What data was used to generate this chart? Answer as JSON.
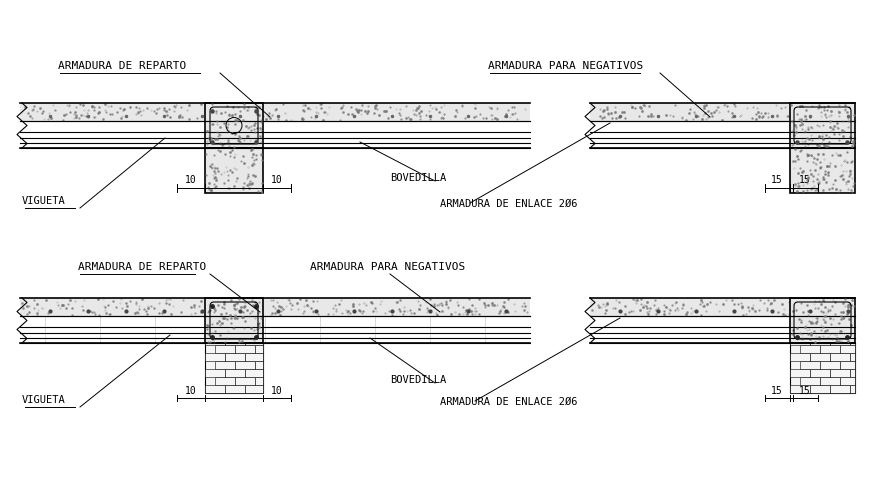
{
  "bg_color": "#ffffff",
  "line_color": "#000000",
  "concrete_color": "#e8e8e8",
  "labels": {
    "armadura_reparto": "ARMADURA DE REPARTO",
    "armadura_negativos": "ARMADURA PARA NEGATIVOS",
    "vigueta": "VIGUETA",
    "bovedilla": "BOVEDILLA",
    "enlace": "ARMADURA DE ENLACE 2Ø6"
  },
  "dim_10": "10",
  "dim_15": "15",
  "title_fontsize": 8.0,
  "label_fontsize": 7.5
}
